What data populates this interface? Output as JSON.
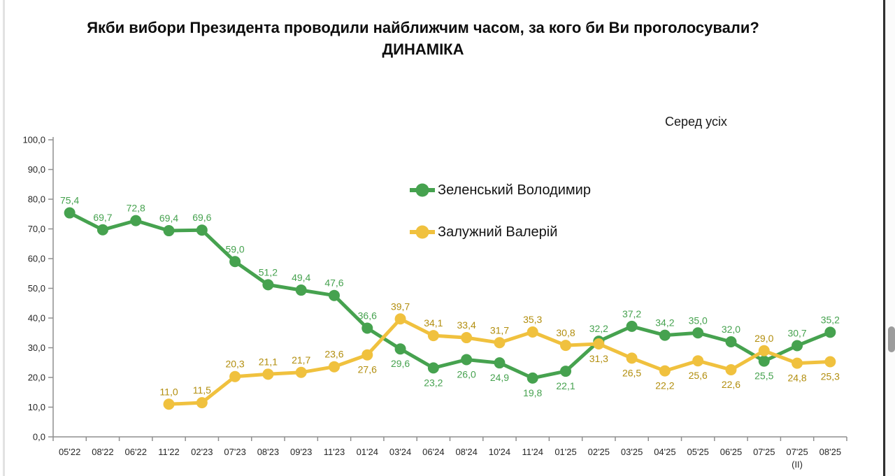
{
  "title": {
    "line1": "Якби вибори Президента проводили найближчим часом, за кого би Ви проголосували?",
    "line2": "ДИНАМІКА"
  },
  "annotation": {
    "audience_label": "Серед усіх"
  },
  "legend": [
    {
      "label": "Зеленський Володимир",
      "color": "#46a24f"
    },
    {
      "label": "Залужний Валерій",
      "color": "#f0c13e"
    }
  ],
  "chart_data": {
    "type": "line",
    "title": "Якби вибори Президента проводили найближчим часом, за кого би Ви проголосували? ДИНАМІКА",
    "subtitle": "Серед усіх",
    "xlabel": "",
    "ylabel": "",
    "ylim": [
      0,
      100
    ],
    "ytick_step": 10,
    "decimal_separator": ",",
    "grid": false,
    "legend_position": "inside-top-center",
    "categories": [
      "05'22",
      "08'22",
      "06'22",
      "11'22",
      "02'23",
      "07'23",
      "08'23",
      "09'23",
      "11'23",
      "01'24",
      "03'24",
      "06'24",
      "08'24",
      "10'24",
      "11'24",
      "01'25",
      "02'25",
      "03'25",
      "04'25",
      "05'25",
      "06'25",
      "07'25",
      "07'25\n(II)",
      "08'25"
    ],
    "series": [
      {
        "name": "Зеленський Володимир",
        "color": "#46a24f",
        "label_color": "#46a24f",
        "values": [
          75.4,
          69.7,
          72.8,
          69.4,
          69.6,
          59.0,
          51.2,
          49.4,
          47.6,
          36.6,
          29.6,
          23.2,
          26.0,
          24.9,
          19.8,
          22.1,
          32.2,
          37.2,
          34.2,
          35.0,
          32.0,
          25.5,
          30.7,
          35.2
        ],
        "label_side": [
          "above",
          "above",
          "above",
          "above",
          "above",
          "above",
          "above",
          "above",
          "above",
          "above",
          "below",
          "below",
          "below",
          "below",
          "below",
          "below",
          "above",
          "above",
          "above",
          "above",
          "above",
          "below",
          "above",
          "above"
        ]
      },
      {
        "name": "Залужний Валерій",
        "color": "#f0c13e",
        "label_color": "#b28e0e",
        "values": [
          null,
          null,
          null,
          11.0,
          11.5,
          20.3,
          21.1,
          21.7,
          23.6,
          27.6,
          39.7,
          34.1,
          33.4,
          31.7,
          35.3,
          30.8,
          31.3,
          26.5,
          22.2,
          25.6,
          22.6,
          29.0,
          24.8,
          25.3
        ],
        "label_side": [
          null,
          null,
          null,
          "above",
          "above",
          "above",
          "above",
          "above",
          "above",
          "below",
          "above",
          "above",
          "above",
          "above",
          "above",
          "above",
          "below",
          "below",
          "below",
          "below",
          "below",
          "above",
          "below",
          "below"
        ]
      }
    ],
    "ytick_labels": [
      "0,0",
      "10,0",
      "20,0",
      "30,0",
      "40,0",
      "50,0",
      "60,0",
      "70,0",
      "80,0",
      "90,0",
      "100,0"
    ]
  }
}
